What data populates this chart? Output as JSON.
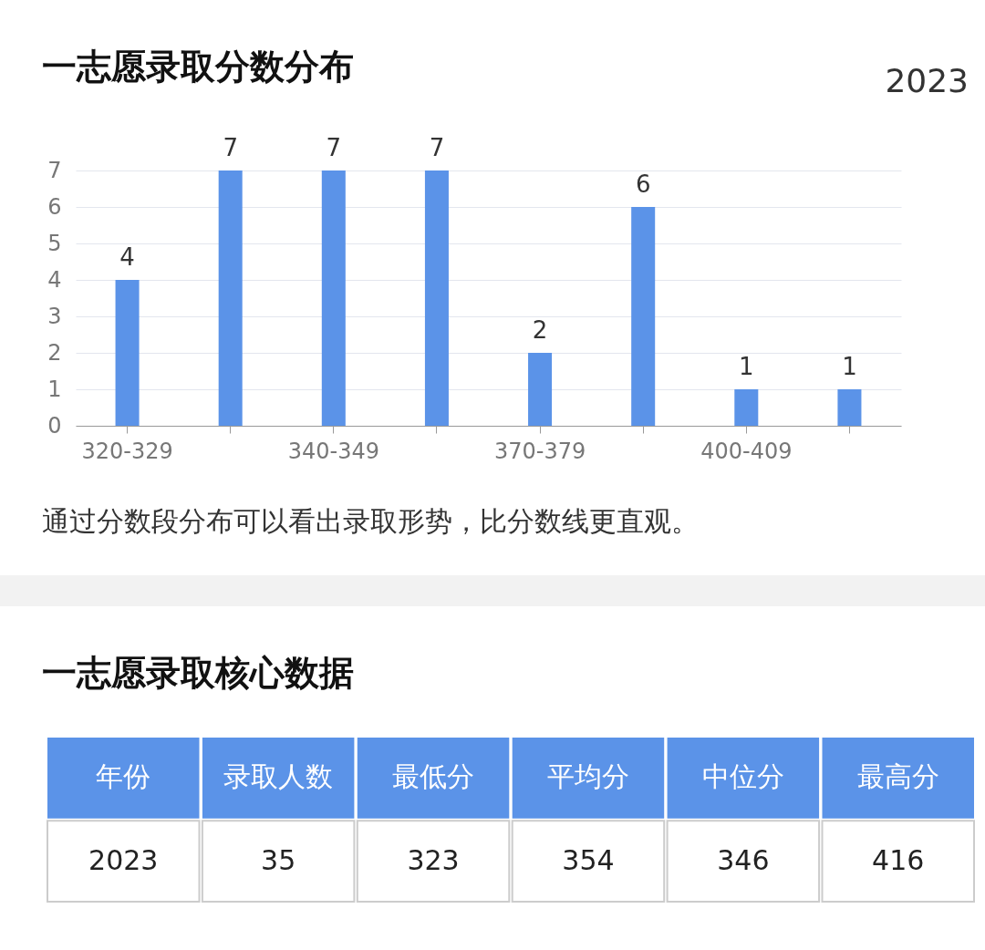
{
  "chart_data": [
    {
      "type": "bar",
      "title": "一志愿录取分数分布",
      "subtitle": "2023",
      "categories": [
        "320-329",
        null,
        "340-349",
        null,
        "370-379",
        null,
        "400-409",
        null
      ],
      "values": [
        4,
        7,
        7,
        7,
        2,
        6,
        1,
        1
      ],
      "color": "#5b93e8",
      "ylim": [
        0,
        7
      ],
      "yticks": [
        0,
        1,
        2,
        3,
        4,
        5,
        6,
        7
      ],
      "grid": "y",
      "data_labels": true,
      "annotations": [
        "通过分数段分布可以看出录取形势，比分数线更直观。"
      ]
    },
    {
      "type": "other",
      "title": "一志愿录取核心数据",
      "categories": [
        "年份",
        "录取人数",
        "最低分",
        "平均分",
        "中位分",
        "最高分"
      ],
      "values": [
        2023,
        35,
        323,
        354,
        346,
        416
      ],
      "color": "#5b93e8",
      "data_labels": true
    }
  ]
}
